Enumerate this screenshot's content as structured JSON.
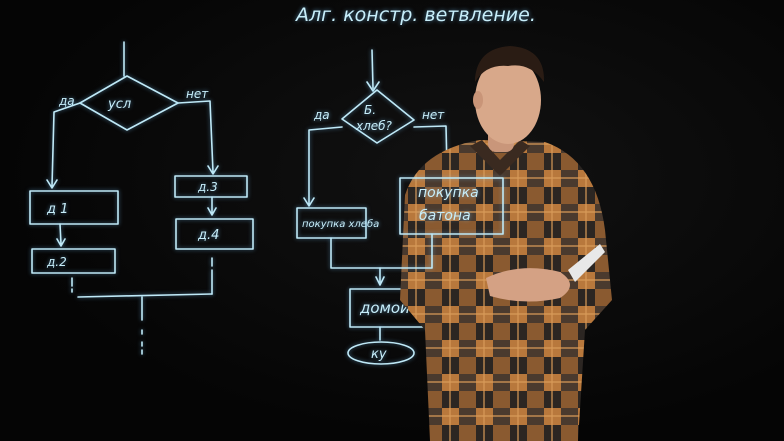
{
  "title": "Алг. констр. ветвление.",
  "left_flowchart": {
    "condition": "усл",
    "yes_label": "да",
    "no_label": "нет",
    "steps": [
      "д 1",
      "д.2",
      "д.3",
      "д.4"
    ]
  },
  "right_flowchart": {
    "condition_line1": "Б.",
    "condition_line2": "хлеб?",
    "yes_label": "да",
    "no_label": "нет",
    "yes_action": "покупка хлеба",
    "no_action_line1": "покупка",
    "no_action_line2": "батона",
    "next_action": "домой",
    "end": "ку"
  },
  "colors": {
    "chalk": "#bfe9f7",
    "background": "#050505",
    "shirt_orange": "#b8783c",
    "shirt_dark": "#2c2622"
  }
}
